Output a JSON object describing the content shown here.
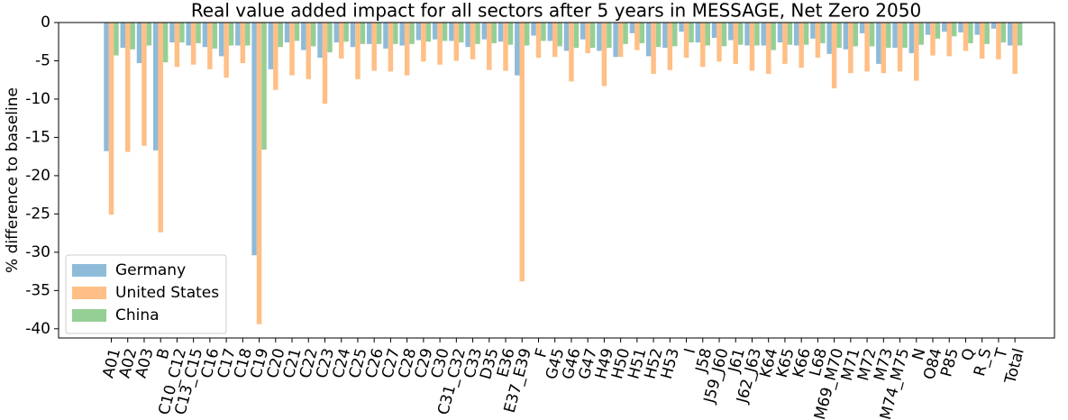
{
  "chart_data": {
    "type": "bar",
    "title": "Real value added impact for all sectors after 5 years in MESSAGE, Net Zero 2050",
    "y_label": "% difference to baseline",
    "categories": [
      "A01",
      "A02",
      "A03",
      "B",
      "C10_C12",
      "C13_C15",
      "C16",
      "C17",
      "C18",
      "C19",
      "C20",
      "C21",
      "C22",
      "C23",
      "C24",
      "C25",
      "C26",
      "C27",
      "C28",
      "C29",
      "C30",
      "C31_C32",
      "C33",
      "D35",
      "E36",
      "E37_E39",
      "F",
      "G45",
      "G46",
      "G47",
      "H49",
      "H50",
      "H51",
      "H52",
      "H53",
      "I",
      "J58",
      "J59_J60",
      "J61",
      "J62_J63",
      "K64",
      "K65",
      "K66",
      "L68",
      "M69_M70",
      "M71",
      "M72",
      "M73",
      "M74_M75",
      "N",
      "O84",
      "P85",
      "Q",
      "R_S",
      "T",
      "Total"
    ],
    "series": [
      {
        "name": "Germany",
        "color": "#8fbbd9",
        "values": [
          -16.8,
          -3.3,
          -5.3,
          -16.7,
          -2.6,
          -3.0,
          -3.2,
          -4.4,
          -3.0,
          -30.4,
          -6.1,
          -2.6,
          -3.6,
          -4.6,
          -2.6,
          -3.2,
          -2.8,
          -3.4,
          -3.0,
          -2.3,
          -2.2,
          -2.4,
          -3.2,
          -2.2,
          -2.5,
          -6.9,
          -1.7,
          -2.4,
          -3.7,
          -2.2,
          -3.7,
          -4.5,
          -1.4,
          -4.4,
          -3.3,
          -1.2,
          -2.6,
          -2.0,
          -2.3,
          -3.0,
          -3.0,
          -2.6,
          -3.0,
          -2.1,
          -4.1,
          -3.5,
          -1.4,
          -5.4,
          -3.3,
          -4.0,
          -1.6,
          -1.2,
          -1.3,
          -1.6,
          -0.8,
          -3.0
        ]
      },
      {
        "name": "United States",
        "color": "#ffbf86",
        "values": [
          -25.1,
          -16.9,
          -16.1,
          -27.4,
          -5.8,
          -5.5,
          -6.1,
          -7.2,
          -5.3,
          -39.4,
          -8.8,
          -6.9,
          -7.4,
          -10.6,
          -4.7,
          -7.4,
          -6.3,
          -6.4,
          -6.9,
          -5.1,
          -5.5,
          -5.0,
          -4.8,
          -6.2,
          -6.3,
          -33.8,
          -4.6,
          -4.5,
          -7.7,
          -4.0,
          -8.3,
          -4.5,
          -3.6,
          -6.7,
          -6.2,
          -4.6,
          -5.8,
          -5.1,
          -5.4,
          -6.3,
          -6.7,
          -5.4,
          -5.9,
          -4.6,
          -8.6,
          -6.6,
          -6.4,
          -6.6,
          -6.4,
          -7.6,
          -4.3,
          -4.4,
          -3.7,
          -4.7,
          -4.8,
          -6.7
        ]
      },
      {
        "name": "China",
        "color": "#95cf95",
        "values": [
          -4.3,
          -3.5,
          -3.0,
          -5.2,
          -2.6,
          -2.7,
          -3.4,
          -3.0,
          -3.0,
          -16.6,
          -3.2,
          -2.4,
          -3.1,
          -3.9,
          -2.5,
          -2.8,
          -2.8,
          -2.8,
          -2.8,
          -2.5,
          -2.4,
          -2.6,
          -2.8,
          -2.7,
          -2.9,
          -3.0,
          -2.4,
          -3.1,
          -3.3,
          -3.3,
          -3.3,
          -2.8,
          -2.7,
          -3.2,
          -3.1,
          -2.6,
          -3.0,
          -3.1,
          -2.9,
          -3.0,
          -3.6,
          -2.9,
          -2.9,
          -2.7,
          -3.3,
          -3.1,
          -3.1,
          -3.3,
          -3.3,
          -2.9,
          -2.1,
          -1.8,
          -2.7,
          -2.8,
          -2.6,
          -3.0
        ]
      }
    ],
    "ylim": [
      -41.2,
      0
    ],
    "yticks": [
      0,
      -5,
      -10,
      -15,
      -20,
      -25,
      -30,
      -35,
      -40
    ],
    "legend": "lower left"
  }
}
